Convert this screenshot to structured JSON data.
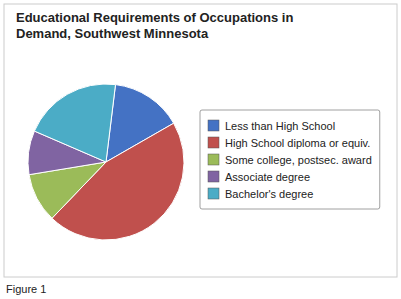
{
  "chart_data": {
    "type": "pie",
    "title": "Educational Requirements of Occupations in\nDemand, Southwest Minnesota",
    "categories": [
      "Less than High School",
      "High School diploma or equiv.",
      "Some college, postsec. award",
      "Associate degree",
      "Bachelor's degree"
    ],
    "values": [
      13,
      40,
      9,
      8,
      18
    ],
    "colors": [
      "#4472c4",
      "#c0504d",
      "#9bbb59",
      "#8064a2",
      "#4bacc6"
    ],
    "legend": "right",
    "annotations": [
      "Figure 1"
    ]
  }
}
